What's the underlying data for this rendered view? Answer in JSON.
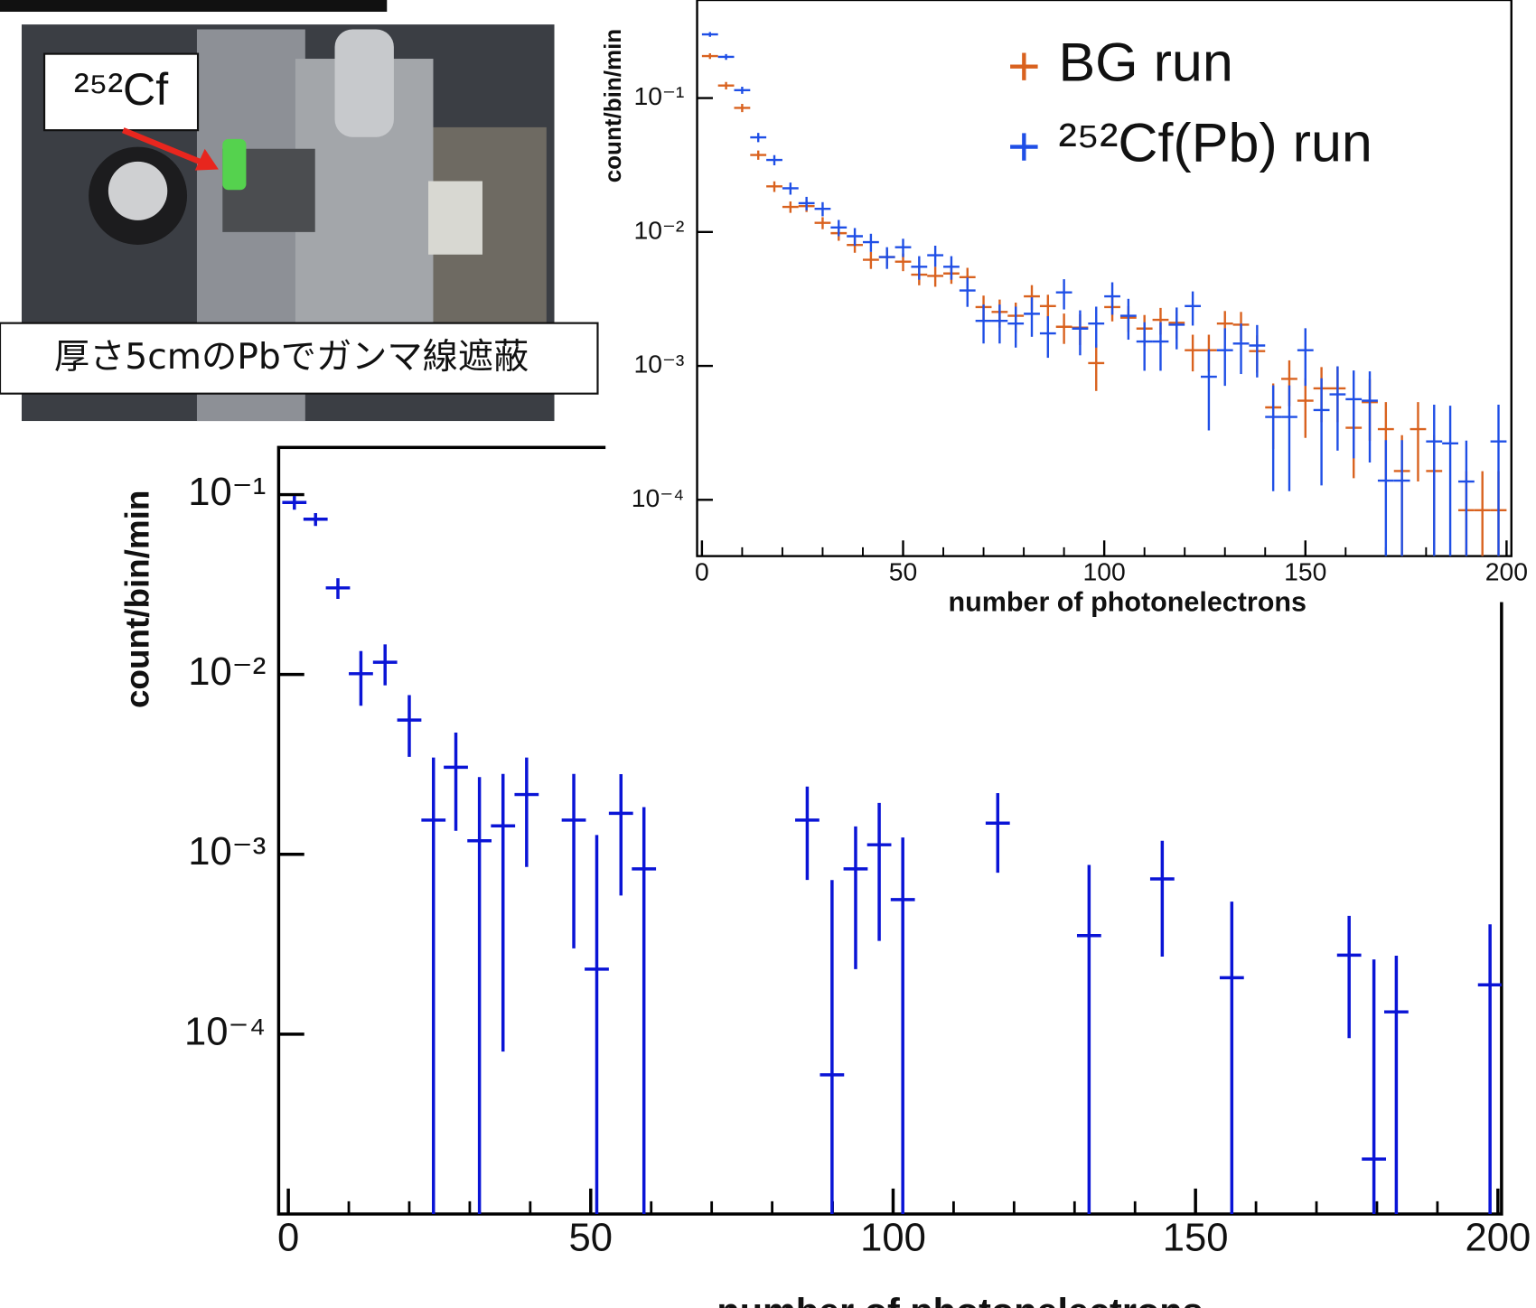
{
  "photo": {
    "label": "²⁵²Cf",
    "caption": "厚さ5cmのPbでガンマ線遮蔽"
  },
  "chart_data": [
    {
      "type": "errorbar",
      "xlabel": "number of photonelectrons",
      "ylabel": "count/bin/min",
      "log_y": true,
      "legend": "upper right",
      "xlim": [
        -1.2,
        201.2
      ],
      "ylim": [
        3.8e-05,
        0.54
      ],
      "xticks": [
        0,
        50,
        100,
        150,
        200
      ],
      "xminorticks": [
        10,
        20,
        30,
        40,
        60,
        70,
        80,
        90,
        110,
        120,
        130,
        140,
        160,
        170,
        180,
        190
      ],
      "yticks": [
        {
          "value": 0.0001,
          "label": "10⁻⁴"
        },
        {
          "value": 0.001,
          "label": "10⁻³"
        },
        {
          "value": 0.01,
          "label": "10⁻²"
        },
        {
          "value": 0.1,
          "label": "10⁻¹"
        }
      ],
      "bin_width": 4,
      "x": [
        2,
        6,
        10,
        14,
        18,
        22,
        26,
        30,
        34,
        38,
        42,
        46,
        50,
        54,
        58,
        62,
        66,
        70,
        74,
        78,
        82,
        86,
        90,
        94,
        98,
        102,
        106,
        110,
        114,
        118,
        122,
        126,
        130,
        134,
        138,
        142,
        146,
        150,
        154,
        158,
        162,
        166,
        170,
        174,
        178,
        182,
        186,
        190,
        194,
        198
      ],
      "series": [
        {
          "name": "BG run",
          "color": "#d9621f",
          "values": [
            0.206,
            0.124,
            0.0845,
            0.0376,
            0.0219,
            0.0154,
            0.0156,
            0.0117,
            0.0098,
            0.008,
            0.0062,
            0.0065,
            0.006,
            0.0048,
            0.0047,
            0.0049,
            0.0046,
            0.00275,
            0.00253,
            0.00237,
            0.00331,
            0.0028,
            0.00196,
            0.00193,
            0.00105,
            0.00275,
            0.00229,
            0.0019,
            0.00221,
            0.0021,
            0.00131,
            0.00131,
            0.00207,
            0.00203,
            0.00129,
            0.00049,
            0.0008,
            0.00055,
            0.00068,
            0.00068,
            0.000345,
            0.000536,
            0.000337,
            0.000164,
            0.000337,
            0.000164,
            null,
            8.37e-05,
            8.37e-05,
            8.37e-05
          ],
          "errors": [
            0.01,
            0.008,
            0.006,
            0.003,
            0.002,
            0.0015,
            0.0015,
            0.0012,
            0.0012,
            0.001,
            0.0009,
            0.0009,
            0.0009,
            0.0008,
            0.0008,
            0.0008,
            0.0008,
            0.0006,
            0.0006,
            0.0006,
            0.0007,
            0.0006,
            0.0005,
            0.0005,
            0.0004,
            0.0006,
            0.0005,
            0.0005,
            0.0005,
            0.0005,
            0.0004,
            0.0004,
            0.0005,
            0.0005,
            0.0004,
            0.00025,
            0.0003,
            0.00026,
            0.0003,
            0.0003,
            0.0002,
            0.00026,
            0.0002,
            0.00014,
            0.0002,
            0.00014,
            null,
            8e-05,
            8e-05,
            8e-05
          ]
        },
        {
          "name": "²⁵²Cf(Pb) run",
          "color": "#1f4fe6",
          "values": [
            0.299,
            0.203,
            0.1146,
            0.0509,
            0.0345,
            0.0212,
            0.0164,
            0.0149,
            0.0108,
            0.0093,
            0.0084,
            0.0065,
            0.0077,
            0.0055,
            0.0067,
            0.0055,
            0.00366,
            0.00217,
            0.00217,
            0.00207,
            0.00245,
            0.00175,
            0.00354,
            0.0019,
            0.00207,
            0.00331,
            0.00237,
            0.00152,
            0.00152,
            0.00203,
            0.0028,
            0.00083,
            0.00131,
            0.00147,
            0.00142,
            0.000416,
            0.000416,
            0.00131,
            0.000468,
            0.000613,
            0.000564,
            0.00055,
            0.000139,
            0.000139,
            null,
            0.000273,
            0.000264,
            0.000137,
            null,
            0.000273
          ],
          "errors": [
            0.012,
            0.01,
            0.007,
            0.004,
            0.003,
            0.0022,
            0.0019,
            0.0018,
            0.0015,
            0.0014,
            0.0013,
            0.0012,
            0.0012,
            0.0011,
            0.0012,
            0.0011,
            0.0009,
            0.0007,
            0.0007,
            0.0007,
            0.0008,
            0.0006,
            0.0009,
            0.0007,
            0.0007,
            0.0009,
            0.0008,
            0.0006,
            0.0006,
            0.0007,
            0.0008,
            0.0005,
            0.0006,
            0.0006,
            0.0006,
            0.0003,
            0.0003,
            0.0006,
            0.00034,
            0.00038,
            0.00036,
            0.00036,
            0.00014,
            0.00014,
            null,
            0.00024,
            0.00024,
            0.00014,
            null,
            0.00024
          ]
        }
      ]
    },
    {
      "type": "errorbar",
      "xlabel": "number of photonelectrons",
      "ylabel": "count/bin/min",
      "log_y": true,
      "xlim": [
        -1.6,
        200.6
      ],
      "ylim": [
        1e-05,
        0.183
      ],
      "xticks": [
        0,
        50,
        100,
        150,
        200
      ],
      "xminorticks": [
        10,
        20,
        30,
        40,
        60,
        70,
        80,
        90,
        110,
        120,
        130,
        140,
        160,
        170,
        180,
        190
      ],
      "yticks": [
        {
          "value": 0.0001,
          "label": "10⁻⁴"
        },
        {
          "value": 0.001,
          "label": "10⁻³"
        },
        {
          "value": 0.01,
          "label": "10⁻²"
        },
        {
          "value": 0.1,
          "label": "10⁻¹"
        }
      ],
      "bin_width": 4,
      "color": "#0a14d6",
      "x": [
        1,
        4.5,
        8.2,
        12,
        16,
        20,
        24,
        27.7,
        31.6,
        35.5,
        39.4,
        47.2,
        51,
        55,
        58.8,
        85.8,
        89.9,
        93.8,
        97.7,
        101.6,
        117.3,
        132.4,
        144.5,
        156,
        175.4,
        179.5,
        183.2,
        198.7
      ],
      "values": [
        0.0904,
        0.073,
        0.0303,
        0.0101,
        0.0117,
        0.00558,
        0.00155,
        0.00305,
        0.00119,
        0.00144,
        0.00215,
        0.00155,
        0.00023,
        0.00169,
        0.00083,
        0.00155,
        5.94e-05,
        0.00083,
        0.00113,
        0.00056,
        0.00149,
        0.000353,
        0.00073,
        0.000206,
        0.000275,
        2.02e-05,
        0.000133,
        0.000188
      ],
      "errors": [
        0.008,
        0.006,
        0.004,
        0.0034,
        0.003,
        0.0021,
        0.0019,
        0.0017,
        0.0015,
        0.00136,
        0.0013,
        0.00125,
        0.00105,
        0.0011,
        0.001,
        0.00083,
        0.00066,
        0.0006,
        0.0008,
        0.00068,
        0.0007,
        0.00052,
        0.00046,
        0.00034,
        0.00018,
        0.00024,
        0.00014,
        0.00022
      ]
    }
  ]
}
